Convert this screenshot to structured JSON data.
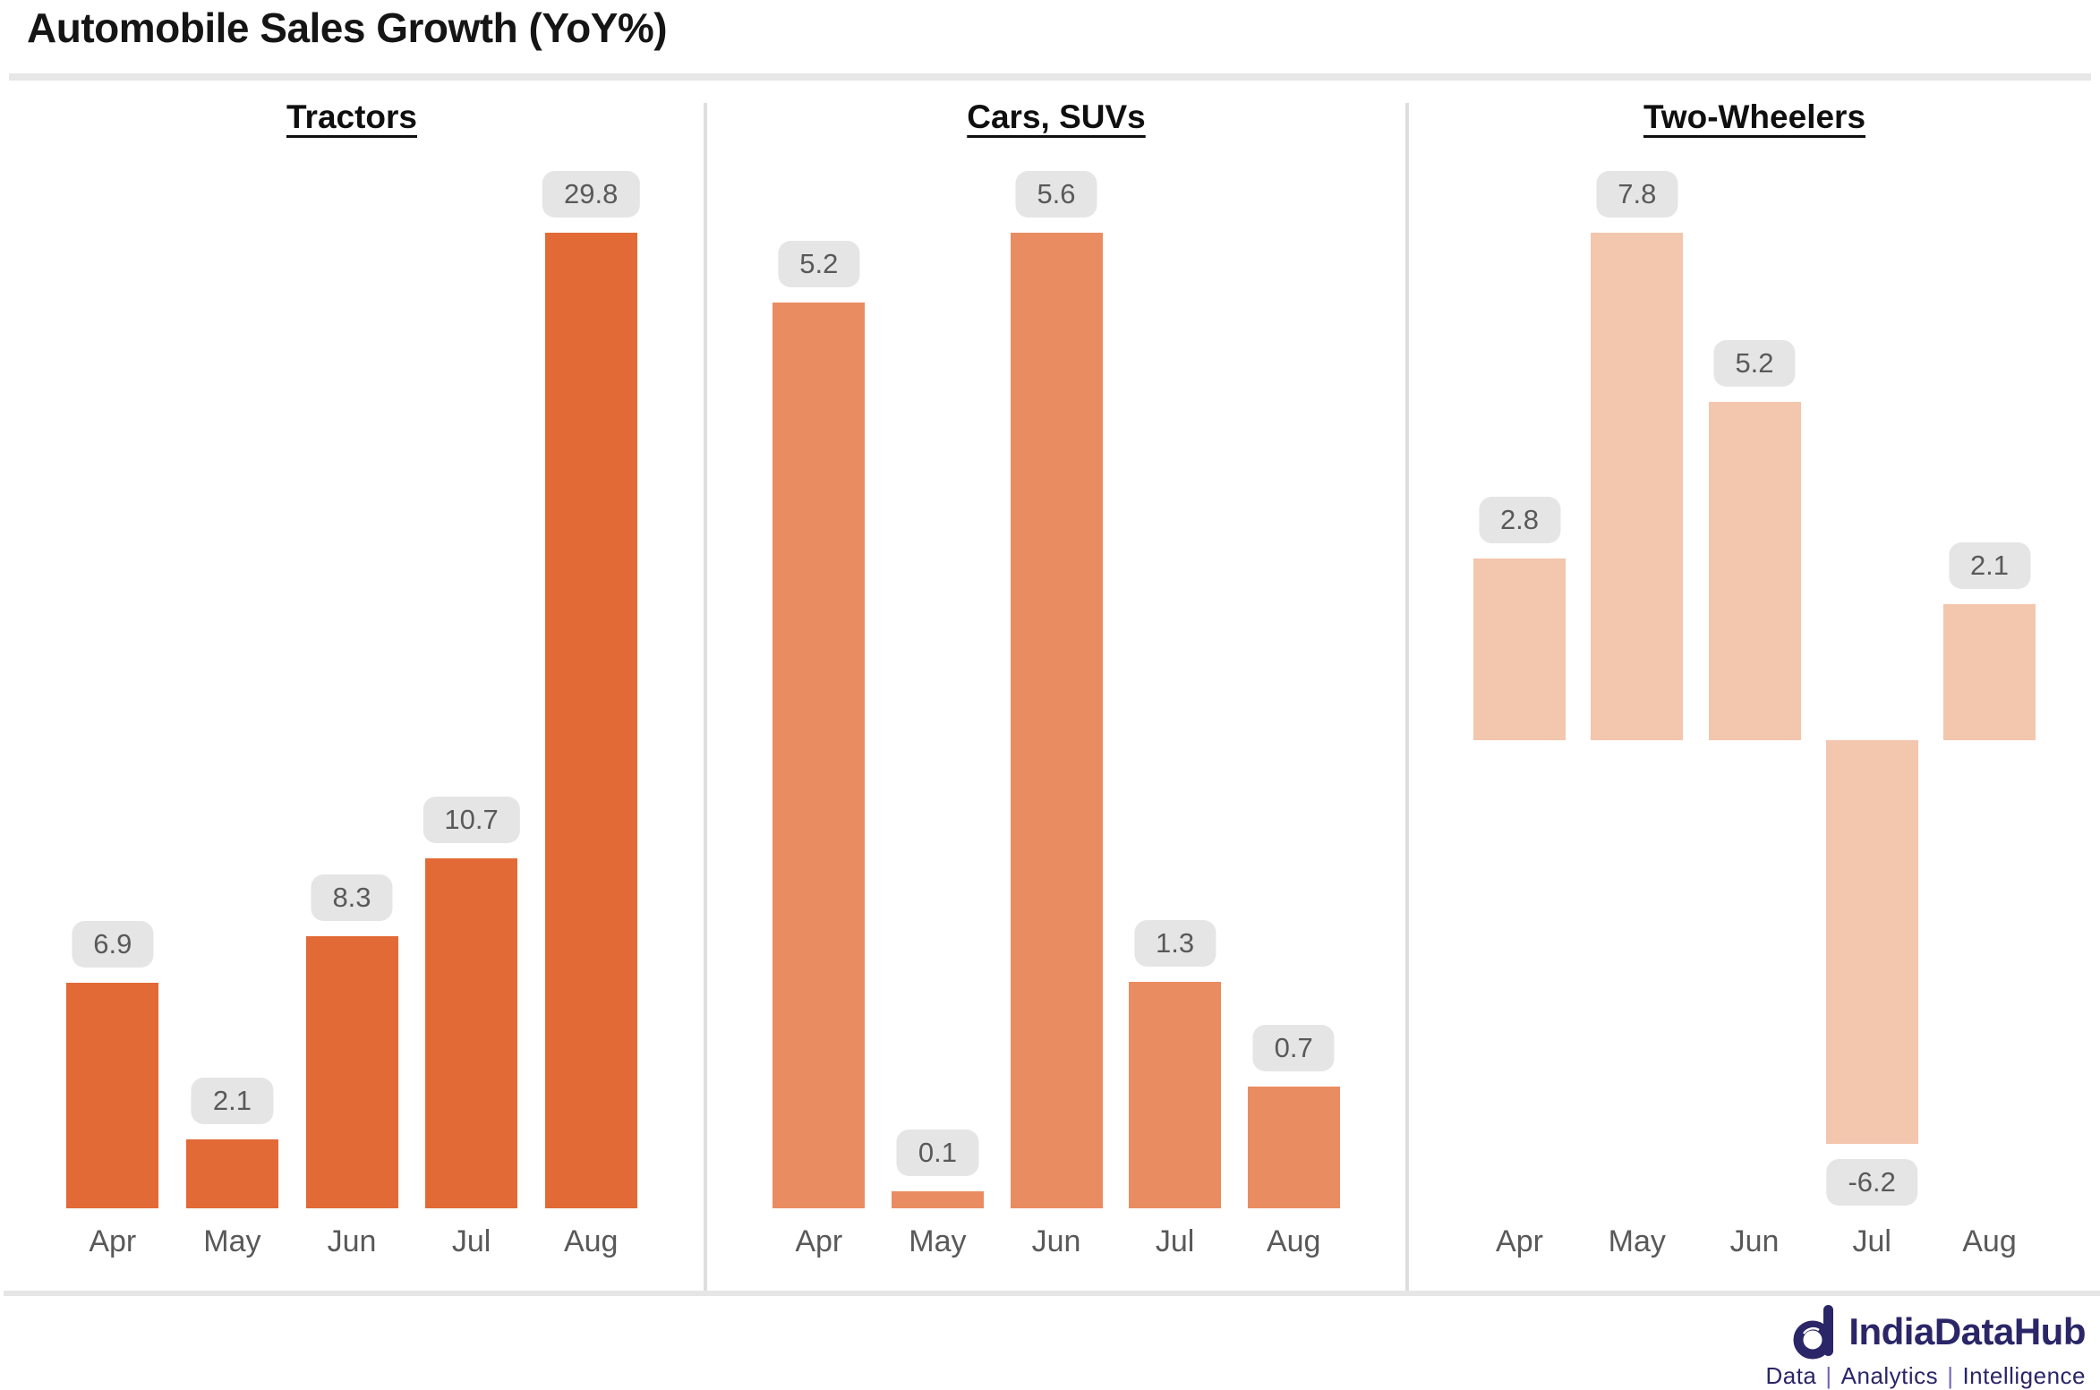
{
  "header": {
    "title": "Automobile Sales Growth (YoY%)"
  },
  "chart_data": [
    {
      "type": "bar",
      "title": "Tractors",
      "categories": [
        "Apr",
        "May",
        "Jun",
        "Jul",
        "Aug"
      ],
      "values": [
        6.9,
        2.1,
        8.3,
        10.7,
        29.8
      ],
      "data_labels": [
        "6.9",
        "2.1",
        "8.3",
        "10.7",
        "29.8"
      ],
      "bar_color": "#E26A36",
      "ylim": [
        0,
        29.8
      ],
      "grid": false,
      "legend": "none",
      "xlabel": "",
      "ylabel": ""
    },
    {
      "type": "bar",
      "title": "Cars, SUVs",
      "categories": [
        "Apr",
        "May",
        "Jun",
        "Jul",
        "Aug"
      ],
      "values": [
        5.2,
        0.1,
        5.6,
        1.3,
        0.7
      ],
      "data_labels": [
        "5.2",
        "0.1",
        "5.6",
        "1.3",
        "0.7"
      ],
      "bar_color": "#EA8C61",
      "ylim": [
        0,
        5.6
      ],
      "grid": false,
      "legend": "none",
      "xlabel": "",
      "ylabel": ""
    },
    {
      "type": "bar",
      "title": "Two-Wheelers",
      "categories": [
        "Apr",
        "May",
        "Jun",
        "Jul",
        "Aug"
      ],
      "values": [
        2.8,
        7.8,
        5.2,
        -6.2,
        2.1
      ],
      "data_labels": [
        "2.8",
        "7.8",
        "5.2",
        "-6.2",
        "2.1"
      ],
      "bar_color": "#F3C6AE",
      "ylim": [
        -6.2,
        7.8
      ],
      "grid": false,
      "legend": "none",
      "xlabel": "",
      "ylabel": ""
    }
  ],
  "styles": {
    "badge_bg": "#E5E5E5",
    "badge_text": "#595959",
    "axis_label_color": "#595959",
    "divider_color": "#E7E7E7",
    "separator_color": "#DEDEDE"
  },
  "logo": {
    "brand": "IndiaDataHub",
    "tagline_parts": [
      "Data",
      "Analytics",
      "Intelligence"
    ],
    "tagline_separator": "|",
    "brand_color": "#2A2668",
    "accent_color": "#6E66B8"
  }
}
